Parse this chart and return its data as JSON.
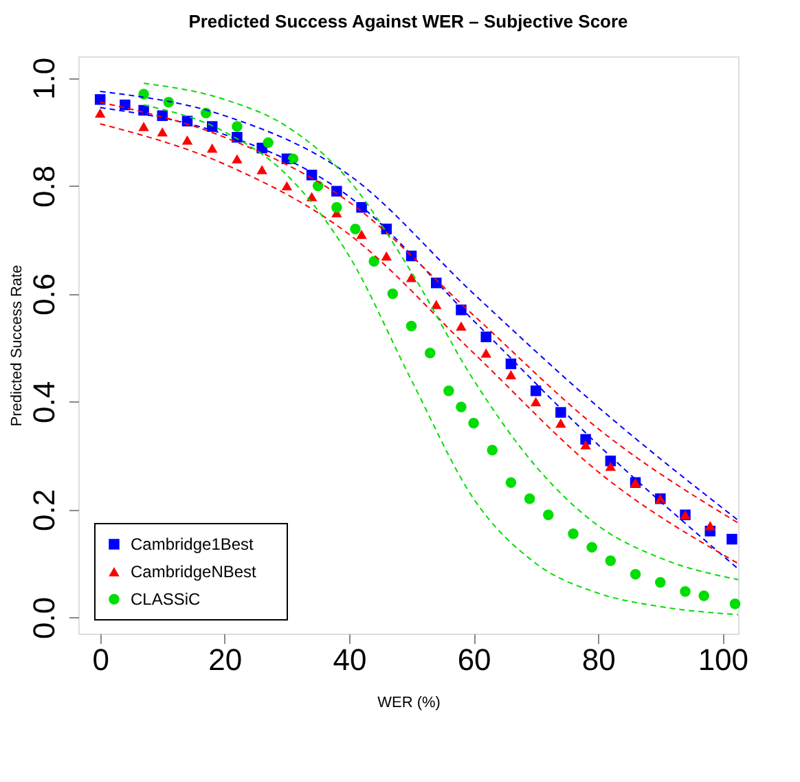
{
  "chart_data": {
    "type": "scatter",
    "title": "Predicted Success Against WER –  Subjective Score",
    "xlabel": "WER (%)",
    "ylabel": "Predicted Success Rate",
    "xlim": [
      -3.5,
      102.5
    ],
    "ylim": [
      -0.03,
      1.04
    ],
    "xticks": [
      0,
      20,
      40,
      60,
      80,
      100
    ],
    "yticks": [
      {
        "value": 0,
        "label": "0.0"
      },
      0.2,
      0.4,
      0.6,
      0.8,
      {
        "value": 1,
        "label": "1.0"
      }
    ],
    "grid": false,
    "legend": "bottom left",
    "series": [
      {
        "name": "Cambridge1Best",
        "color": "#0000ff",
        "marker": "square",
        "x": [
          0,
          4,
          7,
          10,
          14,
          18,
          22,
          26,
          30,
          34,
          38,
          42,
          46,
          50,
          54,
          58,
          62,
          66,
          70,
          74,
          78,
          82,
          86,
          90,
          94,
          98,
          101.5
        ],
        "values": [
          0.96,
          0.95,
          0.94,
          0.93,
          0.92,
          0.91,
          0.89,
          0.87,
          0.85,
          0.82,
          0.79,
          0.76,
          0.72,
          0.67,
          0.62,
          0.57,
          0.52,
          0.47,
          0.42,
          0.38,
          0.33,
          0.29,
          0.25,
          0.22,
          0.19,
          0.16,
          0.145
        ]
      },
      {
        "name": "CambridgeNBest",
        "color": "#ff0000",
        "marker": "triangle",
        "x": [
          0,
          7,
          10,
          14,
          18,
          22,
          26,
          30,
          34,
          38,
          42,
          46,
          50,
          54,
          58,
          62,
          66,
          70,
          74,
          78,
          82,
          86,
          90,
          94,
          98
        ],
        "values": [
          0.935,
          0.91,
          0.9,
          0.885,
          0.87,
          0.85,
          0.83,
          0.8,
          0.78,
          0.75,
          0.71,
          0.67,
          0.63,
          0.58,
          0.54,
          0.49,
          0.45,
          0.4,
          0.36,
          0.32,
          0.28,
          0.25,
          0.22,
          0.19,
          0.17
        ]
      },
      {
        "name": "CLASSiC",
        "color": "#00dd00",
        "marker": "circle",
        "x": [
          7,
          11,
          17,
          22,
          27,
          31,
          35,
          38,
          41,
          44,
          47,
          50,
          53,
          56,
          58,
          60,
          63,
          66,
          69,
          72,
          76,
          79,
          82,
          86,
          90,
          94,
          97,
          102
        ],
        "values": [
          0.97,
          0.955,
          0.935,
          0.91,
          0.88,
          0.85,
          0.8,
          0.76,
          0.72,
          0.66,
          0.6,
          0.54,
          0.49,
          0.42,
          0.39,
          0.36,
          0.31,
          0.25,
          0.22,
          0.19,
          0.155,
          0.13,
          0.105,
          0.08,
          0.065,
          0.048,
          0.04,
          0.025
        ]
      },
      {
        "type": "line",
        "color": "#0000ff",
        "line_style": "dashed",
        "x": [
          0,
          20,
          40,
          60,
          80,
          102.5
        ],
        "values": [
          0.975,
          0.93,
          0.82,
          0.6,
          0.39,
          0.18
        ]
      },
      {
        "type": "line",
        "color": "#0000ff",
        "line_style": "dashed",
        "x": [
          0,
          20,
          40,
          60,
          80,
          102.5
        ],
        "values": [
          0.945,
          0.895,
          0.78,
          0.55,
          0.32,
          0.09
        ]
      },
      {
        "type": "line",
        "color": "#ff0000",
        "line_style": "dashed",
        "x": [
          0,
          20,
          40,
          60,
          80,
          102.5
        ],
        "values": [
          0.955,
          0.89,
          0.77,
          0.56,
          0.35,
          0.175
        ]
      },
      {
        "type": "line",
        "color": "#ff0000",
        "line_style": "dashed",
        "x": [
          0,
          20,
          40,
          60,
          80,
          102.5
        ],
        "values": [
          0.915,
          0.84,
          0.71,
          0.49,
          0.27,
          0.1
        ]
      },
      {
        "type": "line",
        "color": "#00dd00",
        "line_style": "dashed",
        "x": [
          7,
          20,
          30,
          40,
          50,
          60,
          70,
          80,
          90,
          102.5
        ],
        "values": [
          0.99,
          0.96,
          0.91,
          0.81,
          0.64,
          0.44,
          0.28,
          0.17,
          0.11,
          0.07
        ]
      },
      {
        "type": "line",
        "color": "#00dd00",
        "line_style": "dashed",
        "x": [
          7,
          20,
          30,
          40,
          50,
          60,
          70,
          80,
          90,
          102.5
        ],
        "values": [
          0.95,
          0.9,
          0.82,
          0.67,
          0.44,
          0.22,
          0.1,
          0.045,
          0.02,
          0.005
        ]
      }
    ]
  }
}
